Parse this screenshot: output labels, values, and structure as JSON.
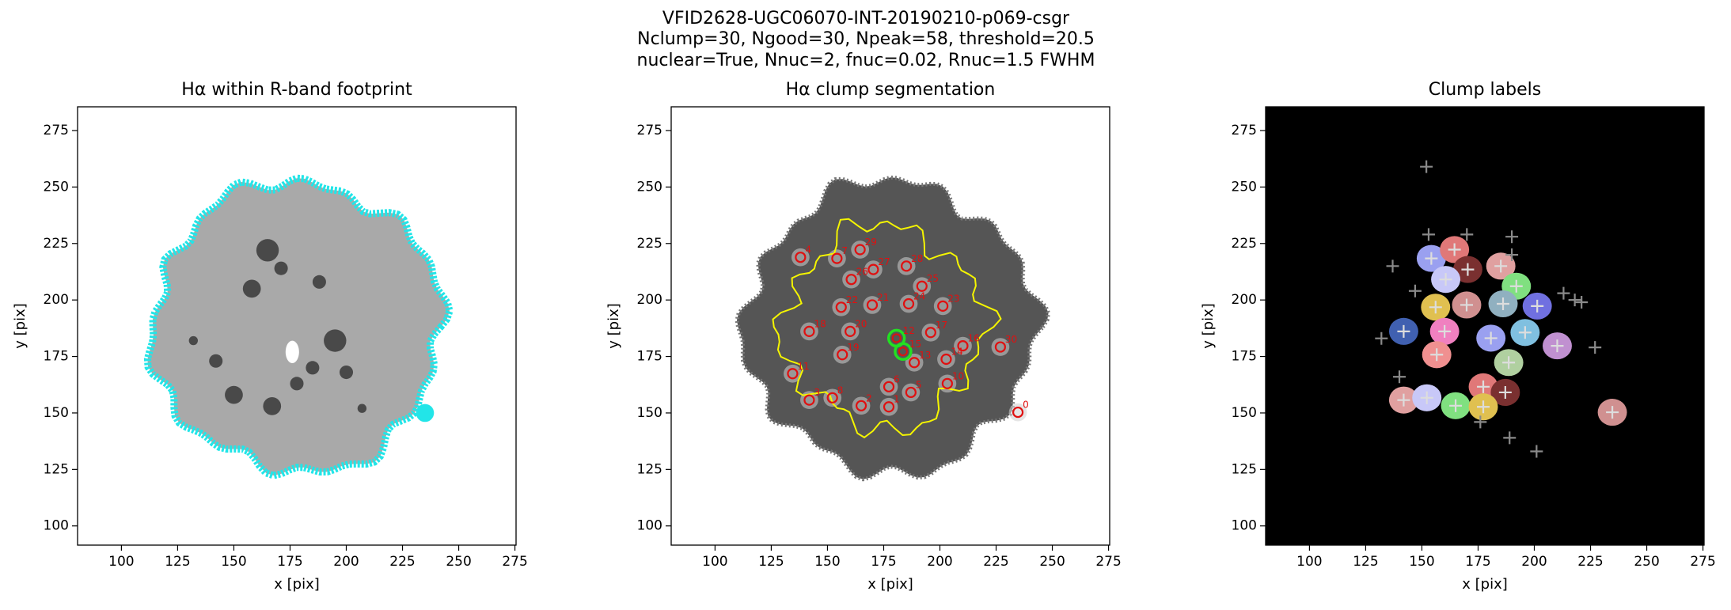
{
  "suptitle": [
    "VFID2628-UGC06070-INT-20190210-p069-csgr",
    "Nclump=30, Ngood=30, Npeak=58, threshold=20.5",
    "nuclear=True, Nnuc=2, fnuc=0.02, Rnuc=1.5 FWHM"
  ],
  "chart_data": [
    {
      "type": "image",
      "title": "Hα within R-band footprint",
      "x_label": "x [pix]",
      "y_label": "y [pix]",
      "xlim": [
        80.5,
        275.5
      ],
      "ylim": [
        91.5,
        285.5
      ],
      "xticks": [
        100,
        125,
        150,
        175,
        200,
        225,
        250,
        275
      ],
      "yticks": [
        100,
        125,
        150,
        175,
        200,
        225,
        250,
        275
      ],
      "edge_color": "#22e5e8"
    },
    {
      "type": "clumps",
      "title": "Hα clump segmentation",
      "x_label": "x [pix]",
      "y_label": "y [pix]",
      "xlim": [
        80.5,
        275.5
      ],
      "ylim": [
        91.5,
        285.5
      ],
      "xticks": [
        100,
        125,
        150,
        175,
        200,
        225,
        250,
        275
      ],
      "yticks": [
        100,
        125,
        150,
        175,
        200,
        225,
        250,
        275
      ],
      "contour_color": "#f5f500",
      "marker_color": "#e01010",
      "nucleus_color": "#22e022",
      "clumps": {
        "x": [
          138.0,
          154.2,
          164.5,
          170.4,
          185.1,
          160.6,
          192.0,
          156.1,
          169.9,
          186.1,
          201.3,
          160.1,
          141.9,
          195.9,
          210.2,
          156.6,
          188.6,
          202.8,
          203.3,
          134.5,
          177.3,
          187.1,
          141.9,
          152.2,
          165.0,
          177.3,
          226.9,
          234.7
        ],
        "y": [
          218.9,
          218.4,
          222.3,
          213.5,
          215.0,
          209.1,
          206.1,
          196.8,
          197.8,
          198.3,
          197.3,
          186.1,
          186.1,
          185.6,
          179.7,
          175.8,
          172.3,
          173.8,
          163.0,
          167.4,
          161.6,
          159.1,
          155.7,
          156.7,
          153.2,
          152.7,
          179.2,
          150.3
        ],
        "labels": [
          "4",
          "7",
          "29",
          "27",
          "28",
          "26",
          "25",
          "22",
          "21",
          "24",
          "23",
          "20",
          "18",
          "17",
          "16",
          "19",
          "13",
          "14",
          "10",
          "11",
          "6",
          "5",
          "3",
          "8",
          "2",
          "1",
          "30",
          "0"
        ]
      },
      "nuclei": {
        "x": [
          180.7,
          183.6
        ],
        "y": [
          183.1,
          177.2
        ],
        "labels": [
          "12",
          "15"
        ]
      }
    },
    {
      "type": "labels",
      "title": "Clump labels",
      "x_label": "x [pix]",
      "y_label": "y [pix]",
      "xlim": [
        80.5,
        275.5
      ],
      "ylim": [
        91.5,
        285.5
      ],
      "xticks": [
        100,
        125,
        150,
        175,
        200,
        225,
        250,
        275
      ],
      "yticks": [
        100,
        125,
        150,
        175,
        200,
        225,
        250,
        275
      ],
      "background": "#000000",
      "segment_colors": [
        "#9aa0f0",
        "#e07878",
        "#7a3030",
        "#e0a0a0",
        "#c8c8f8",
        "#80e080",
        "#e0c050",
        "#d09090",
        "#90b0c0",
        "#7070e0",
        "#f080c0",
        "#4060b0",
        "#80c0e0",
        "#c090d0",
        "#f09090",
        "#b0d0a0"
      ],
      "series": [
        {
          "color": "#dddddd",
          "x": [
            154.2,
            164.5,
            170.4,
            185.1,
            160.6,
            192.0,
            156.1,
            169.9,
            186.1,
            201.3,
            160.1,
            141.9,
            195.9,
            210.2,
            156.6,
            188.6,
            180.7,
            177.3,
            187.1,
            141.9,
            152.2,
            165.0,
            177.3,
            234.7
          ],
          "y": [
            218.4,
            222.3,
            213.5,
            215.0,
            209.1,
            206.1,
            196.8,
            197.8,
            198.3,
            197.3,
            186.1,
            186.1,
            185.6,
            179.7,
            175.8,
            172.3,
            183.1,
            161.6,
            159.1,
            155.7,
            156.7,
            153.2,
            152.7,
            150.3
          ]
        },
        {
          "color": "#8a8a8a",
          "x": [
            152.0,
            153.0,
            170.0,
            190.0,
            190.0,
            137.0,
            132.0,
            147.0,
            213.0,
            218.0,
            221.0,
            189.0,
            201.0,
            140.0,
            176.0,
            227.0
          ],
          "y": [
            259.0,
            229.0,
            229.0,
            228.0,
            220.0,
            215.0,
            183.0,
            204.0,
            203.0,
            200.0,
            199.0,
            139.0,
            133.0,
            166.0,
            146.0,
            179.0
          ]
        }
      ]
    }
  ]
}
